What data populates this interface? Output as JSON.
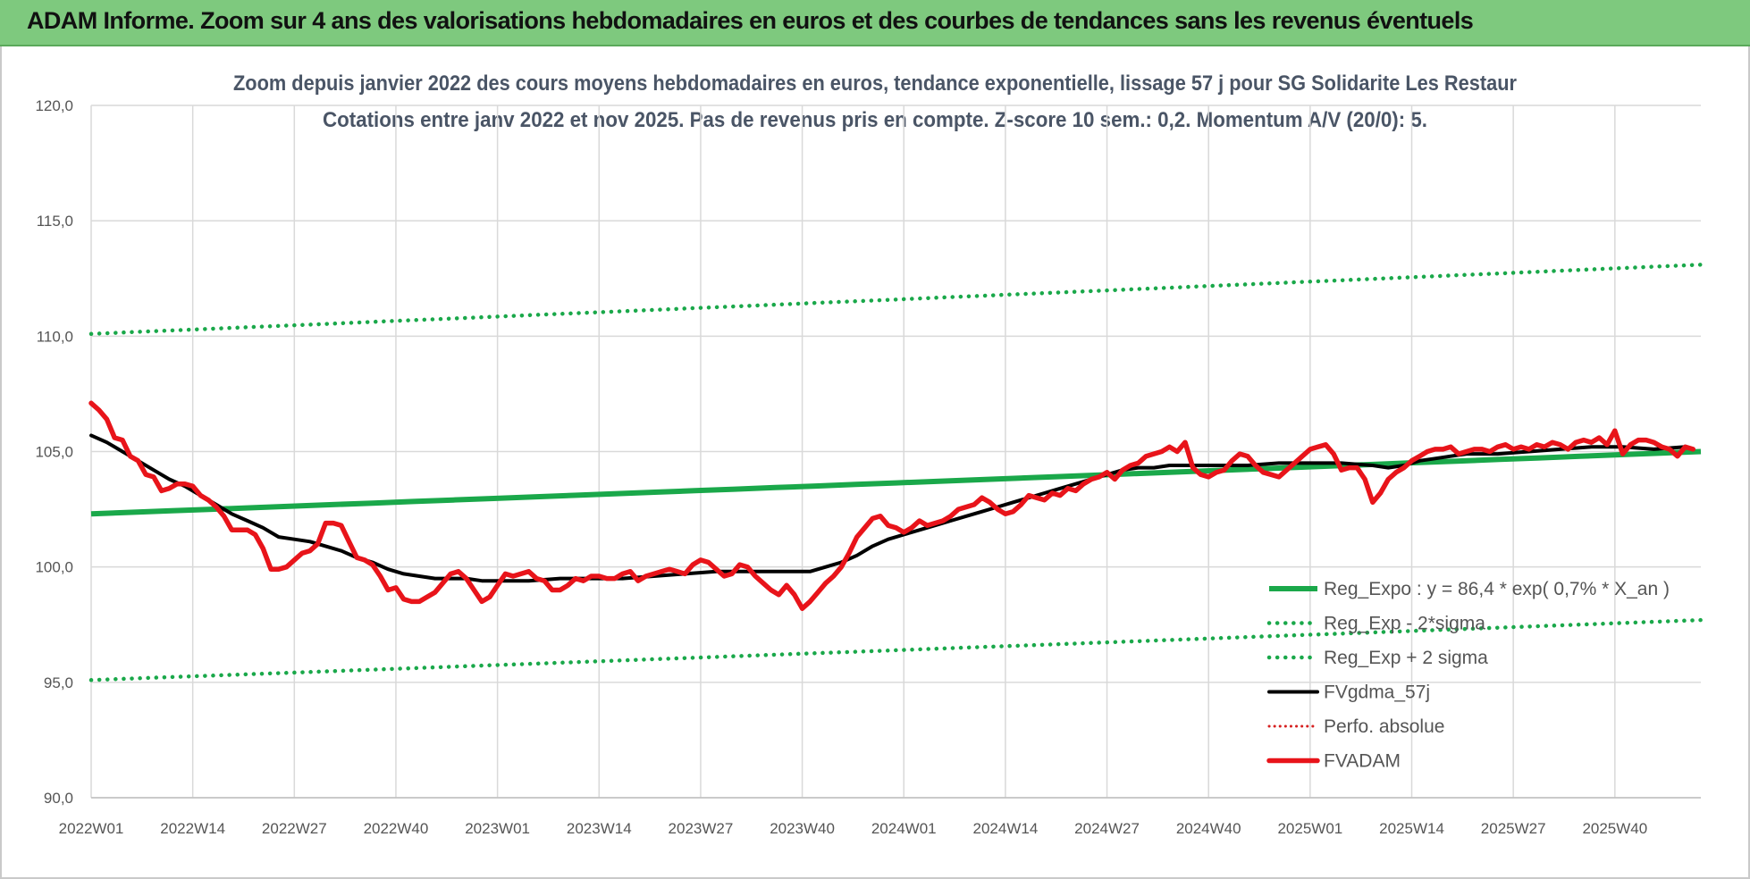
{
  "header": {
    "title": "ADAM Informe. Zoom sur 4 ans des valorisations hebdomadaires en euros et des courbes de tendances sans les revenus éventuels"
  },
  "colors": {
    "header_bg": "#7ec97e",
    "trend": "#1aa84a",
    "band": "#1aa84a",
    "smooth": "#000000",
    "perfo": "#d62020",
    "price": "#e8141a"
  },
  "chart_data": {
    "type": "line",
    "title_line1": "Zoom depuis janvier 2022 des cours moyens hebdomadaires en euros, tendance exponentielle, lissage 57 j pour SG Solidarite Les Restaur",
    "title_line2": "Cotations entre janv 2022 et nov 2025. Pas de revenus pris en compte. Z-score 10 sem.: 0,2. Momentum A/V (20/0): 5.",
    "ylim": [
      90,
      120
    ],
    "y_ticks": [
      "120,0",
      "115,0",
      "110,0",
      "105,0",
      "100,0",
      "95,0",
      "90,0"
    ],
    "x_ticks": [
      "2022W01",
      "2022W14",
      "2022W27",
      "2022W40",
      "2023W01",
      "2023W14",
      "2023W27",
      "2023W40",
      "2024W01",
      "2024W14",
      "2024W27",
      "2024W40",
      "2025W01",
      "2025W14",
      "2025W27",
      "2025W40"
    ],
    "x_range_weeks": [
      0,
      206
    ],
    "grid": "vertical-and-horizontal",
    "legend_position": "bottom-right",
    "legend": [
      {
        "key": "reg_expo",
        "label": "Reg_Expo : y = 86,4 * exp( 0,7% *  X_an )"
      },
      {
        "key": "reg_minus",
        "label": "Reg_Exp - 2*sigma"
      },
      {
        "key": "reg_plus",
        "label": "Reg_Exp + 2 sigma"
      },
      {
        "key": "fvgdma",
        "label": "FVgdma_57j"
      },
      {
        "key": "perfo",
        "label": "Perfo. absolue"
      },
      {
        "key": "fvadam",
        "label": "FVADAM"
      }
    ],
    "series": [
      {
        "key": "reg_expo",
        "name": "Reg_Expo : y = 86,4 * exp( 0,7% *  X_an )",
        "style": "solid-thick",
        "points": [
          [
            0,
            102.3
          ],
          [
            206,
            105.0
          ]
        ]
      },
      {
        "key": "reg_minus",
        "name": "Reg_Exp - 2*sigma",
        "style": "dotted",
        "points": [
          [
            0,
            95.1
          ],
          [
            206,
            97.7
          ]
        ]
      },
      {
        "key": "reg_plus",
        "name": "Reg_Exp + 2 sigma",
        "style": "dotted",
        "points": [
          [
            0,
            110.1
          ],
          [
            206,
            113.1
          ]
        ]
      },
      {
        "key": "fvgdma",
        "name": "FVgdma_57j",
        "style": "solid",
        "points": [
          [
            0,
            105.7
          ],
          [
            2,
            105.4
          ],
          [
            4,
            105.0
          ],
          [
            6,
            104.6
          ],
          [
            8,
            104.2
          ],
          [
            10,
            103.8
          ],
          [
            12,
            103.5
          ],
          [
            14,
            103.1
          ],
          [
            16,
            102.7
          ],
          [
            18,
            102.3
          ],
          [
            20,
            102.0
          ],
          [
            22,
            101.7
          ],
          [
            24,
            101.3
          ],
          [
            26,
            101.2
          ],
          [
            28,
            101.1
          ],
          [
            30,
            100.9
          ],
          [
            32,
            100.7
          ],
          [
            34,
            100.4
          ],
          [
            36,
            100.2
          ],
          [
            38,
            99.9
          ],
          [
            40,
            99.7
          ],
          [
            42,
            99.6
          ],
          [
            44,
            99.5
          ],
          [
            46,
            99.5
          ],
          [
            48,
            99.5
          ],
          [
            50,
            99.4
          ],
          [
            52,
            99.4
          ],
          [
            56,
            99.4
          ],
          [
            60,
            99.5
          ],
          [
            64,
            99.5
          ],
          [
            68,
            99.5
          ],
          [
            72,
            99.6
          ],
          [
            76,
            99.7
          ],
          [
            80,
            99.8
          ],
          [
            84,
            99.8
          ],
          [
            88,
            99.8
          ],
          [
            90,
            99.8
          ],
          [
            92,
            99.8
          ],
          [
            94,
            100.0
          ],
          [
            96,
            100.2
          ],
          [
            98,
            100.5
          ],
          [
            100,
            100.9
          ],
          [
            102,
            101.2
          ],
          [
            104,
            101.4
          ],
          [
            106,
            101.6
          ],
          [
            108,
            101.8
          ],
          [
            110,
            102.0
          ],
          [
            112,
            102.2
          ],
          [
            114,
            102.4
          ],
          [
            116,
            102.6
          ],
          [
            118,
            102.8
          ],
          [
            120,
            103.0
          ],
          [
            122,
            103.2
          ],
          [
            124,
            103.4
          ],
          [
            126,
            103.6
          ],
          [
            128,
            103.8
          ],
          [
            130,
            104.0
          ],
          [
            132,
            104.2
          ],
          [
            134,
            104.3
          ],
          [
            136,
            104.3
          ],
          [
            138,
            104.4
          ],
          [
            140,
            104.4
          ],
          [
            144,
            104.4
          ],
          [
            148,
            104.4
          ],
          [
            152,
            104.5
          ],
          [
            156,
            104.5
          ],
          [
            160,
            104.5
          ],
          [
            164,
            104.4
          ],
          [
            166,
            104.3
          ],
          [
            168,
            104.4
          ],
          [
            170,
            104.6
          ],
          [
            172,
            104.7
          ],
          [
            174,
            104.8
          ],
          [
            176,
            104.9
          ],
          [
            180,
            104.9
          ],
          [
            184,
            105.0
          ],
          [
            188,
            105.1
          ],
          [
            192,
            105.2
          ],
          [
            196,
            105.2
          ],
          [
            200,
            105.1
          ],
          [
            204,
            105.2
          ]
        ]
      },
      {
        "key": "fvadam",
        "name": "FVADAM",
        "style": "solid-thick",
        "points": [
          [
            0,
            107.1
          ],
          [
            1,
            106.8
          ],
          [
            2,
            106.4
          ],
          [
            3,
            105.6
          ],
          [
            4,
            105.5
          ],
          [
            5,
            104.8
          ],
          [
            6,
            104.6
          ],
          [
            7,
            104.0
          ],
          [
            8,
            103.9
          ],
          [
            9,
            103.3
          ],
          [
            10,
            103.4
          ],
          [
            11,
            103.6
          ],
          [
            12,
            103.6
          ],
          [
            13,
            103.5
          ],
          [
            14,
            103.1
          ],
          [
            15,
            102.9
          ],
          [
            16,
            102.6
          ],
          [
            17,
            102.2
          ],
          [
            18,
            101.6
          ],
          [
            19,
            101.6
          ],
          [
            20,
            101.6
          ],
          [
            21,
            101.4
          ],
          [
            22,
            100.8
          ],
          [
            23,
            99.9
          ],
          [
            24,
            99.9
          ],
          [
            25,
            100.0
          ],
          [
            26,
            100.3
          ],
          [
            27,
            100.6
          ],
          [
            28,
            100.7
          ],
          [
            29,
            101.0
          ],
          [
            30,
            101.9
          ],
          [
            31,
            101.9
          ],
          [
            32,
            101.8
          ],
          [
            33,
            101.1
          ],
          [
            34,
            100.4
          ],
          [
            35,
            100.3
          ],
          [
            36,
            100.1
          ],
          [
            37,
            99.6
          ],
          [
            38,
            99.0
          ],
          [
            39,
            99.1
          ],
          [
            40,
            98.6
          ],
          [
            41,
            98.5
          ],
          [
            42,
            98.5
          ],
          [
            43,
            98.7
          ],
          [
            44,
            98.9
          ],
          [
            45,
            99.3
          ],
          [
            46,
            99.7
          ],
          [
            47,
            99.8
          ],
          [
            48,
            99.5
          ],
          [
            49,
            99.0
          ],
          [
            50,
            98.5
          ],
          [
            51,
            98.7
          ],
          [
            52,
            99.2
          ],
          [
            53,
            99.7
          ],
          [
            54,
            99.6
          ],
          [
            55,
            99.7
          ],
          [
            56,
            99.8
          ],
          [
            57,
            99.5
          ],
          [
            58,
            99.4
          ],
          [
            59,
            99.0
          ],
          [
            60,
            99.0
          ],
          [
            61,
            99.2
          ],
          [
            62,
            99.5
          ],
          [
            63,
            99.4
          ],
          [
            64,
            99.6
          ],
          [
            65,
            99.6
          ],
          [
            66,
            99.5
          ],
          [
            67,
            99.5
          ],
          [
            68,
            99.7
          ],
          [
            69,
            99.8
          ],
          [
            70,
            99.4
          ],
          [
            71,
            99.6
          ],
          [
            72,
            99.7
          ],
          [
            73,
            99.8
          ],
          [
            74,
            99.9
          ],
          [
            75,
            99.8
          ],
          [
            76,
            99.7
          ],
          [
            77,
            100.1
          ],
          [
            78,
            100.3
          ],
          [
            79,
            100.2
          ],
          [
            80,
            99.9
          ],
          [
            81,
            99.6
          ],
          [
            82,
            99.7
          ],
          [
            83,
            100.1
          ],
          [
            84,
            100.0
          ],
          [
            85,
            99.6
          ],
          [
            86,
            99.3
          ],
          [
            87,
            99.0
          ],
          [
            88,
            98.8
          ],
          [
            89,
            99.2
          ],
          [
            90,
            98.8
          ],
          [
            91,
            98.2
          ],
          [
            92,
            98.5
          ],
          [
            93,
            98.9
          ],
          [
            94,
            99.3
          ],
          [
            95,
            99.6
          ],
          [
            96,
            100.0
          ],
          [
            97,
            100.6
          ],
          [
            98,
            101.3
          ],
          [
            99,
            101.7
          ],
          [
            100,
            102.1
          ],
          [
            101,
            102.2
          ],
          [
            102,
            101.8
          ],
          [
            103,
            101.7
          ],
          [
            104,
            101.5
          ],
          [
            105,
            101.7
          ],
          [
            106,
            102.0
          ],
          [
            107,
            101.8
          ],
          [
            108,
            101.9
          ],
          [
            109,
            102.0
          ],
          [
            110,
            102.2
          ],
          [
            111,
            102.5
          ],
          [
            112,
            102.6
          ],
          [
            113,
            102.7
          ],
          [
            114,
            103.0
          ],
          [
            115,
            102.8
          ],
          [
            116,
            102.5
          ],
          [
            117,
            102.3
          ],
          [
            118,
            102.4
          ],
          [
            119,
            102.7
          ],
          [
            120,
            103.1
          ],
          [
            121,
            103.0
          ],
          [
            122,
            102.9
          ],
          [
            123,
            103.2
          ],
          [
            124,
            103.1
          ],
          [
            125,
            103.4
          ],
          [
            126,
            103.3
          ],
          [
            127,
            103.6
          ],
          [
            128,
            103.8
          ],
          [
            129,
            103.9
          ],
          [
            130,
            104.1
          ],
          [
            131,
            103.8
          ],
          [
            132,
            104.2
          ],
          [
            133,
            104.4
          ],
          [
            134,
            104.5
          ],
          [
            135,
            104.8
          ],
          [
            136,
            104.9
          ],
          [
            137,
            105.0
          ],
          [
            138,
            105.2
          ],
          [
            139,
            105.0
          ],
          [
            140,
            105.4
          ],
          [
            141,
            104.3
          ],
          [
            142,
            104.0
          ],
          [
            143,
            103.9
          ],
          [
            144,
            104.1
          ],
          [
            145,
            104.2
          ],
          [
            146,
            104.6
          ],
          [
            147,
            104.9
          ],
          [
            148,
            104.8
          ],
          [
            149,
            104.4
          ],
          [
            150,
            104.1
          ],
          [
            151,
            104.0
          ],
          [
            152,
            103.9
          ],
          [
            153,
            104.2
          ],
          [
            154,
            104.5
          ],
          [
            155,
            104.8
          ],
          [
            156,
            105.1
          ],
          [
            157,
            105.2
          ],
          [
            158,
            105.3
          ],
          [
            159,
            104.9
          ],
          [
            160,
            104.2
          ],
          [
            161,
            104.3
          ],
          [
            162,
            104.3
          ],
          [
            163,
            103.8
          ],
          [
            164,
            102.8
          ],
          [
            165,
            103.2
          ],
          [
            166,
            103.8
          ],
          [
            167,
            104.1
          ],
          [
            168,
            104.3
          ],
          [
            169,
            104.6
          ],
          [
            170,
            104.8
          ],
          [
            171,
            105.0
          ],
          [
            172,
            105.1
          ],
          [
            173,
            105.1
          ],
          [
            174,
            105.2
          ],
          [
            175,
            104.9
          ],
          [
            176,
            105.0
          ],
          [
            177,
            105.1
          ],
          [
            178,
            105.1
          ],
          [
            179,
            105.0
          ],
          [
            180,
            105.2
          ],
          [
            181,
            105.3
          ],
          [
            182,
            105.1
          ],
          [
            183,
            105.2
          ],
          [
            184,
            105.1
          ],
          [
            185,
            105.3
          ],
          [
            186,
            105.2
          ],
          [
            187,
            105.4
          ],
          [
            188,
            105.3
          ],
          [
            189,
            105.1
          ],
          [
            190,
            105.4
          ],
          [
            191,
            105.5
          ],
          [
            192,
            105.4
          ],
          [
            193,
            105.6
          ],
          [
            194,
            105.3
          ],
          [
            195,
            105.9
          ],
          [
            196,
            104.9
          ],
          [
            197,
            105.3
          ],
          [
            198,
            105.5
          ],
          [
            199,
            105.5
          ],
          [
            200,
            105.4
          ],
          [
            201,
            105.2
          ],
          [
            202,
            105.1
          ],
          [
            203,
            104.8
          ],
          [
            204,
            105.2
          ],
          [
            205,
            105.1
          ]
        ]
      }
    ]
  }
}
